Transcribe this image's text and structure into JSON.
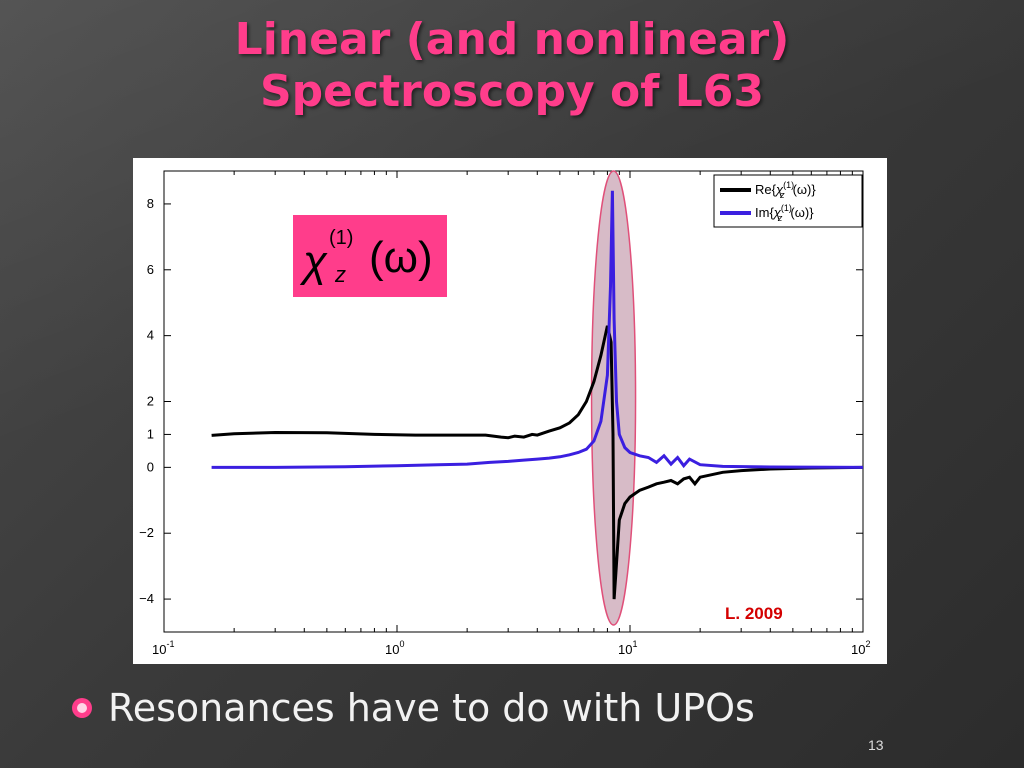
{
  "slide": {
    "title_line1": "Linear (and nonlinear)",
    "title_line2": "Spectroscopy of L63",
    "bullet": "Resonances have to do with UPOs",
    "slide_number": "13"
  },
  "colors": {
    "title": "#ff3d8b",
    "series_re": "#000000",
    "series_im": "#3b1fe0",
    "highlight": "#e0507a",
    "formula_box": "#ff3d8b",
    "citation": "#d40000"
  },
  "chart_data": {
    "type": "line",
    "x_scale": "log",
    "xlim": [
      0.1,
      100
    ],
    "ylim": [
      -5,
      9
    ],
    "x_ticks": [
      0.1,
      1,
      10,
      100
    ],
    "x_tick_labels": [
      "10",
      "10",
      "10",
      "10"
    ],
    "x_tick_exponents": [
      "-1",
      "0",
      "1",
      "2"
    ],
    "y_ticks": [
      -4,
      -2,
      0,
      1,
      2,
      4,
      6,
      8
    ],
    "y_tick_labels": [
      "−4",
      "−2",
      "0",
      "1",
      "2",
      "4",
      "6",
      "8"
    ],
    "formula": {
      "chi": "χ",
      "sup": "(1)",
      "sub": "z",
      "arg": "(ω)"
    },
    "citation": "L. 2009",
    "legend": {
      "position": "top-right",
      "entries": [
        {
          "prefix": "Re{",
          "sup": "(1)",
          "sub": "z",
          "suffix": "(ω)}"
        },
        {
          "prefix": "Im{",
          "sup": "(1)",
          "sub": "z",
          "suffix": "(ω)}"
        }
      ]
    },
    "highlight_region": {
      "x": 8.5
    },
    "series": [
      {
        "key": "re",
        "points": [
          [
            0.16,
            0.97
          ],
          [
            0.2,
            1.02
          ],
          [
            0.3,
            1.06
          ],
          [
            0.5,
            1.05
          ],
          [
            0.8,
            1.0
          ],
          [
            1.2,
            0.98
          ],
          [
            1.8,
            0.98
          ],
          [
            2.4,
            0.98
          ],
          [
            2.8,
            0.92
          ],
          [
            3.0,
            0.9
          ],
          [
            3.2,
            0.95
          ],
          [
            3.5,
            0.92
          ],
          [
            3.8,
            1.0
          ],
          [
            4.0,
            0.98
          ],
          [
            4.5,
            1.1
          ],
          [
            5.0,
            1.2
          ],
          [
            5.5,
            1.35
          ],
          [
            6.0,
            1.6
          ],
          [
            6.5,
            2.0
          ],
          [
            7.0,
            2.6
          ],
          [
            7.5,
            3.4
          ],
          [
            8.0,
            4.3
          ],
          [
            8.3,
            3.8
          ],
          [
            8.45,
            1.0
          ],
          [
            8.55,
            -4.0
          ],
          [
            8.7,
            -3.2
          ],
          [
            9.0,
            -1.6
          ],
          [
            9.5,
            -1.1
          ],
          [
            10.0,
            -0.9
          ],
          [
            11.0,
            -0.7
          ],
          [
            12.0,
            -0.6
          ],
          [
            13.0,
            -0.5
          ],
          [
            14.0,
            -0.45
          ],
          [
            15.0,
            -0.4
          ],
          [
            16.0,
            -0.5
          ],
          [
            17.0,
            -0.35
          ],
          [
            18.0,
            -0.3
          ],
          [
            19.0,
            -0.5
          ],
          [
            20.0,
            -0.3
          ],
          [
            25.0,
            -0.15
          ],
          [
            30.0,
            -0.1
          ],
          [
            40.0,
            -0.05
          ],
          [
            60.0,
            -0.02
          ],
          [
            100.0,
            0.0
          ]
        ]
      },
      {
        "key": "im",
        "points": [
          [
            0.16,
            0.0
          ],
          [
            0.3,
            0.0
          ],
          [
            0.6,
            0.02
          ],
          [
            1.0,
            0.05
          ],
          [
            1.5,
            0.08
          ],
          [
            2.0,
            0.1
          ],
          [
            2.5,
            0.15
          ],
          [
            3.0,
            0.18
          ],
          [
            3.5,
            0.22
          ],
          [
            4.0,
            0.25
          ],
          [
            4.5,
            0.28
          ],
          [
            5.0,
            0.32
          ],
          [
            5.5,
            0.38
          ],
          [
            6.0,
            0.45
          ],
          [
            6.5,
            0.55
          ],
          [
            7.0,
            0.8
          ],
          [
            7.5,
            1.4
          ],
          [
            8.0,
            2.8
          ],
          [
            8.25,
            5.5
          ],
          [
            8.4,
            8.4
          ],
          [
            8.55,
            4.5
          ],
          [
            8.75,
            2.0
          ],
          [
            9.0,
            1.0
          ],
          [
            9.5,
            0.6
          ],
          [
            10.0,
            0.45
          ],
          [
            11.0,
            0.35
          ],
          [
            12.0,
            0.3
          ],
          [
            13.0,
            0.15
          ],
          [
            14.0,
            0.35
          ],
          [
            15.0,
            0.1
          ],
          [
            16.0,
            0.3
          ],
          [
            17.0,
            0.05
          ],
          [
            18.0,
            0.25
          ],
          [
            20.0,
            0.08
          ],
          [
            25.0,
            0.03
          ],
          [
            40.0,
            0.01
          ],
          [
            100.0,
            0.0
          ]
        ]
      }
    ]
  }
}
